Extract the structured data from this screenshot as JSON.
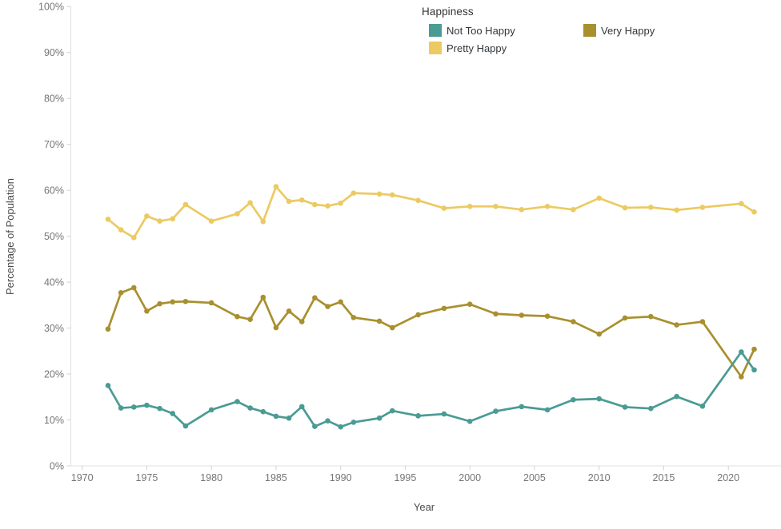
{
  "legend": {
    "title": "Happiness",
    "items": [
      {
        "label": "Not Too Happy",
        "color": "#4a9b94"
      },
      {
        "label": "Very Happy",
        "color": "#a9902e"
      },
      {
        "label": "Pretty Happy",
        "color": "#ecca62"
      }
    ]
  },
  "chart_data": {
    "type": "line",
    "title": "",
    "xlabel": "Year",
    "ylabel": "Percentage of Population",
    "ylim": [
      0,
      100
    ],
    "xlim": [
      1969.1,
      2024.1
    ],
    "grid": false,
    "legend_position": "top-center",
    "x_tick_values": [
      1970,
      1975,
      1980,
      1985,
      1990,
      1995,
      2000,
      2005,
      2010,
      2015,
      2020
    ],
    "x_tick_labels": [
      "1970",
      "1975",
      "1980",
      "1985",
      "1990",
      "1995",
      "2000",
      "2005",
      "2010",
      "2015",
      "2020"
    ],
    "y_tick_values": [
      0,
      10,
      20,
      30,
      40,
      50,
      60,
      70,
      80,
      90,
      100
    ],
    "y_tick_labels": [
      "0%",
      "10%",
      "20%",
      "30%",
      "40%",
      "50%",
      "60%",
      "70%",
      "80%",
      "90%",
      "100%"
    ],
    "x": [
      1972,
      1973,
      1974,
      1975,
      1976,
      1977,
      1978,
      1980,
      1982,
      1983,
      1984,
      1985,
      1986,
      1987,
      1988,
      1989,
      1990,
      1991,
      1993,
      1994,
      1996,
      1998,
      2000,
      2002,
      2004,
      2006,
      2008,
      2010,
      2012,
      2014,
      2016,
      2018,
      2021,
      2022
    ],
    "series": [
      {
        "name": "Not Too Happy",
        "color": "#4a9b94",
        "values": [
          17.5,
          12.6,
          12.8,
          13.2,
          12.5,
          11.4,
          8.7,
          12.2,
          14.0,
          12.6,
          11.8,
          10.8,
          10.4,
          12.9,
          8.6,
          9.8,
          8.5,
          9.5,
          10.4,
          12.0,
          10.9,
          11.3,
          9.7,
          11.9,
          12.9,
          12.2,
          14.4,
          14.6,
          12.8,
          12.5,
          15.1,
          13.0,
          24.8,
          20.9
        ]
      },
      {
        "name": "Very Happy",
        "color": "#a9902e",
        "values": [
          29.8,
          37.7,
          38.8,
          33.7,
          35.3,
          35.7,
          35.8,
          35.5,
          32.5,
          31.9,
          36.7,
          30.1,
          33.7,
          31.4,
          36.6,
          34.7,
          35.7,
          32.3,
          31.5,
          30.1,
          32.9,
          34.3,
          35.2,
          33.1,
          32.8,
          32.6,
          31.4,
          28.7,
          32.2,
          32.5,
          30.7,
          31.4,
          19.4,
          25.4
        ]
      },
      {
        "name": "Pretty Happy",
        "color": "#ecca62",
        "values": [
          53.7,
          51.4,
          49.7,
          54.4,
          53.3,
          53.8,
          56.9,
          53.3,
          54.9,
          57.3,
          53.2,
          60.8,
          57.6,
          57.9,
          56.9,
          56.6,
          57.2,
          59.4,
          59.2,
          59.0,
          57.8,
          56.1,
          56.5,
          56.5,
          55.8,
          56.5,
          55.8,
          58.3,
          56.2,
          56.3,
          55.7,
          56.3,
          57.1,
          55.3
        ]
      }
    ]
  }
}
